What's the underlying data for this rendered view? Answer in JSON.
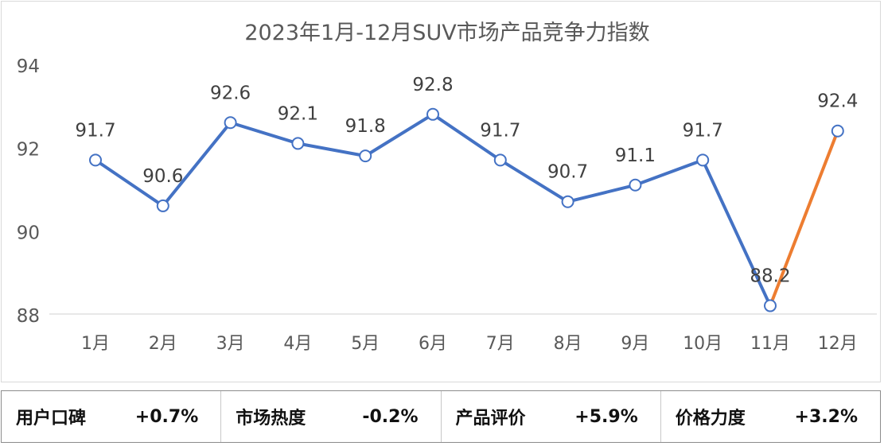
{
  "chart_data": {
    "type": "line",
    "title": "2023年1月-12月SUV市场产品竞争力指数",
    "categories": [
      "1月",
      "2月",
      "3月",
      "4月",
      "5月",
      "6月",
      "7月",
      "8月",
      "9月",
      "10月",
      "11月",
      "12月"
    ],
    "series": [
      {
        "values": [
          91.7,
          90.6,
          92.6,
          92.1,
          91.8,
          92.8,
          91.7,
          90.7,
          91.1,
          91.7,
          88.2,
          92.4
        ]
      }
    ],
    "data_labels": [
      "91.7",
      "90.6",
      "92.6",
      "92.1",
      "91.8",
      "92.8",
      "91.7",
      "90.7",
      "91.1",
      "91.7",
      "88.2",
      "92.4"
    ],
    "highlight_segment": {
      "from": "11月",
      "to": "12月",
      "color": "#ED7D31"
    },
    "line_color": "#4472C4",
    "ylim": [
      88,
      94
    ],
    "yticks": [
      88,
      90,
      92,
      94
    ],
    "xlabel": "",
    "ylabel": "",
    "grid": false,
    "drop_lines": true
  },
  "metrics": [
    {
      "label": "用户口碑",
      "value": "+0.7%"
    },
    {
      "label": "市场热度",
      "value": "-0.2%"
    },
    {
      "label": "产品评价",
      "value": "+5.9%"
    },
    {
      "label": "价格力度",
      "value": "+3.2%"
    }
  ]
}
